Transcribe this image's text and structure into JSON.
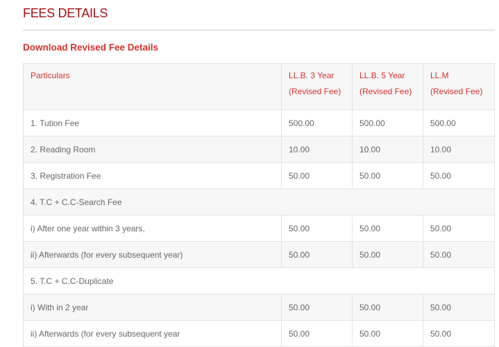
{
  "page": {
    "title": "FEES DETAILS",
    "download_link": "Download Revised Fee Details"
  },
  "table": {
    "headers": [
      {
        "line1": "Particulars",
        "line2": ""
      },
      {
        "line1": "LL.B. 3 Year",
        "line2": "(Revised Fee)"
      },
      {
        "line1": "LL.B. 5 Year",
        "line2": "(Revised Fee)"
      },
      {
        "line1": "LL.M",
        "line2": "(Revised Fee)"
      }
    ],
    "rows": [
      {
        "label": "1. Tution Fee",
        "values": [
          "500.00",
          "500.00",
          "500.00"
        ]
      },
      {
        "label": "2. Reading Room",
        "values": [
          "10.00",
          "10.00",
          "10.00"
        ]
      },
      {
        "label": "3. Registration Fee",
        "values": [
          "50.00",
          "50.00",
          "50.00"
        ]
      },
      {
        "label": "4. T.C + C.C-Search Fee",
        "values": []
      },
      {
        "label": "i) After one year within 3 years,",
        "values": [
          "50.00",
          "50.00",
          "50.00"
        ]
      },
      {
        "label": "ii) Afterwards (for every subsequent year)",
        "values": [
          "50.00",
          "50.00",
          "50.00"
        ]
      },
      {
        "label": "5. T.C + C.C-Duplicate",
        "values": []
      },
      {
        "label": "i) With in 2 year",
        "values": [
          "50.00",
          "50.00",
          "50.00"
        ]
      },
      {
        "label": "ii) Afterwards (for every subsequent year",
        "values": [
          "50.00",
          "50.00",
          "50.00"
        ]
      }
    ]
  }
}
